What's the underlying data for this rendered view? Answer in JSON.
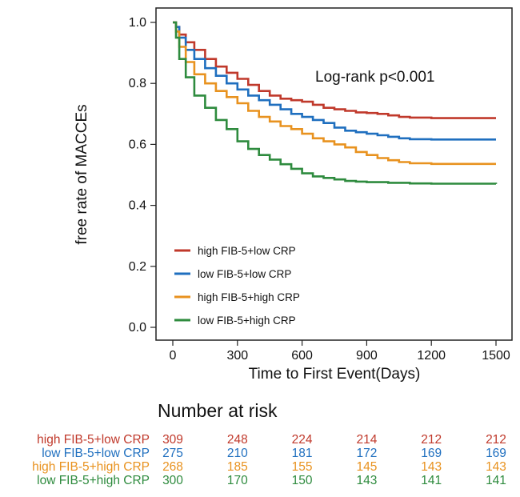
{
  "chart_data": {
    "type": "line",
    "subtype": "kaplan-meier",
    "title": "",
    "xlabel": "Time to First Event(Days)",
    "ylabel": "free rate of MACCEs",
    "xlim": [
      0,
      1500
    ],
    "ylim": [
      0,
      1.0
    ],
    "x_ticks": [
      "0",
      "300",
      "600",
      "900",
      "1200",
      "1500"
    ],
    "y_ticks": [
      "0.0",
      "0.2",
      "0.4",
      "0.6",
      "0.8",
      "1.0"
    ],
    "grid": false,
    "legend_position": "bottom-left",
    "annotation": "Log-rank p<0.001",
    "series": [
      {
        "name": "high FIB-5+low CRP",
        "color": "#c0392b",
        "points": [
          [
            0,
            1.0
          ],
          [
            15,
            0.985
          ],
          [
            30,
            0.96
          ],
          [
            60,
            0.935
          ],
          [
            100,
            0.91
          ],
          [
            150,
            0.88
          ],
          [
            200,
            0.855
          ],
          [
            250,
            0.835
          ],
          [
            300,
            0.815
          ],
          [
            350,
            0.795
          ],
          [
            400,
            0.775
          ],
          [
            450,
            0.76
          ],
          [
            500,
            0.75
          ],
          [
            550,
            0.745
          ],
          [
            600,
            0.74
          ],
          [
            650,
            0.73
          ],
          [
            700,
            0.72
          ],
          [
            750,
            0.715
          ],
          [
            800,
            0.71
          ],
          [
            850,
            0.705
          ],
          [
            900,
            0.703
          ],
          [
            950,
            0.7
          ],
          [
            1000,
            0.695
          ],
          [
            1050,
            0.69
          ],
          [
            1100,
            0.688
          ],
          [
            1200,
            0.686
          ],
          [
            1300,
            0.686
          ],
          [
            1500,
            0.686
          ]
        ]
      },
      {
        "name": "low FIB-5+low CRP",
        "color": "#1f6fbf",
        "points": [
          [
            0,
            1.0
          ],
          [
            15,
            0.985
          ],
          [
            30,
            0.95
          ],
          [
            60,
            0.91
          ],
          [
            100,
            0.88
          ],
          [
            150,
            0.85
          ],
          [
            200,
            0.825
          ],
          [
            250,
            0.8
          ],
          [
            300,
            0.78
          ],
          [
            350,
            0.76
          ],
          [
            400,
            0.745
          ],
          [
            450,
            0.73
          ],
          [
            500,
            0.715
          ],
          [
            550,
            0.7
          ],
          [
            600,
            0.69
          ],
          [
            650,
            0.68
          ],
          [
            700,
            0.67
          ],
          [
            750,
            0.655
          ],
          [
            800,
            0.645
          ],
          [
            850,
            0.64
          ],
          [
            900,
            0.635
          ],
          [
            950,
            0.63
          ],
          [
            1000,
            0.625
          ],
          [
            1050,
            0.62
          ],
          [
            1100,
            0.617
          ],
          [
            1200,
            0.616
          ],
          [
            1500,
            0.616
          ]
        ]
      },
      {
        "name": "high FIB-5+high CRP",
        "color": "#e8921f",
        "points": [
          [
            0,
            1.0
          ],
          [
            15,
            0.97
          ],
          [
            30,
            0.92
          ],
          [
            60,
            0.87
          ],
          [
            100,
            0.83
          ],
          [
            150,
            0.8
          ],
          [
            200,
            0.775
          ],
          [
            250,
            0.755
          ],
          [
            300,
            0.735
          ],
          [
            350,
            0.71
          ],
          [
            400,
            0.69
          ],
          [
            450,
            0.675
          ],
          [
            500,
            0.66
          ],
          [
            550,
            0.65
          ],
          [
            600,
            0.635
          ],
          [
            650,
            0.62
          ],
          [
            700,
            0.61
          ],
          [
            750,
            0.6
          ],
          [
            800,
            0.59
          ],
          [
            850,
            0.575
          ],
          [
            900,
            0.565
          ],
          [
            950,
            0.555
          ],
          [
            1000,
            0.548
          ],
          [
            1050,
            0.542
          ],
          [
            1100,
            0.538
          ],
          [
            1200,
            0.536
          ],
          [
            1500,
            0.536
          ]
        ]
      },
      {
        "name": "low FIB-5+high CRP",
        "color": "#2e8b3e",
        "points": [
          [
            0,
            1.0
          ],
          [
            15,
            0.95
          ],
          [
            30,
            0.88
          ],
          [
            60,
            0.82
          ],
          [
            100,
            0.76
          ],
          [
            150,
            0.72
          ],
          [
            200,
            0.68
          ],
          [
            250,
            0.65
          ],
          [
            300,
            0.61
          ],
          [
            350,
            0.585
          ],
          [
            400,
            0.565
          ],
          [
            450,
            0.55
          ],
          [
            500,
            0.535
          ],
          [
            550,
            0.52
          ],
          [
            600,
            0.505
          ],
          [
            650,
            0.495
          ],
          [
            700,
            0.49
          ],
          [
            750,
            0.485
          ],
          [
            800,
            0.48
          ],
          [
            850,
            0.478
          ],
          [
            900,
            0.476
          ],
          [
            1000,
            0.474
          ],
          [
            1100,
            0.472
          ],
          [
            1200,
            0.471
          ],
          [
            1500,
            0.47
          ]
        ]
      }
    ],
    "risk_table": {
      "title": "Number at risk",
      "timepoints": [
        0,
        300,
        600,
        900,
        1200,
        1500
      ],
      "rows": [
        {
          "name": "high FIB-5+low CRP",
          "values": [
            "309",
            "248",
            "224",
            "214",
            "212",
            "212"
          ]
        },
        {
          "name": "low FIB-5+low CRP",
          "values": [
            "275",
            "210",
            "181",
            "172",
            "169",
            "169"
          ]
        },
        {
          "name": "high FIB-5+high CRP",
          "values": [
            "268",
            "185",
            "155",
            "145",
            "143",
            "143"
          ]
        },
        {
          "name": "low FIB-5+high CRP",
          "values": [
            "300",
            "170",
            "150",
            "143",
            "141",
            "141"
          ]
        }
      ]
    }
  }
}
